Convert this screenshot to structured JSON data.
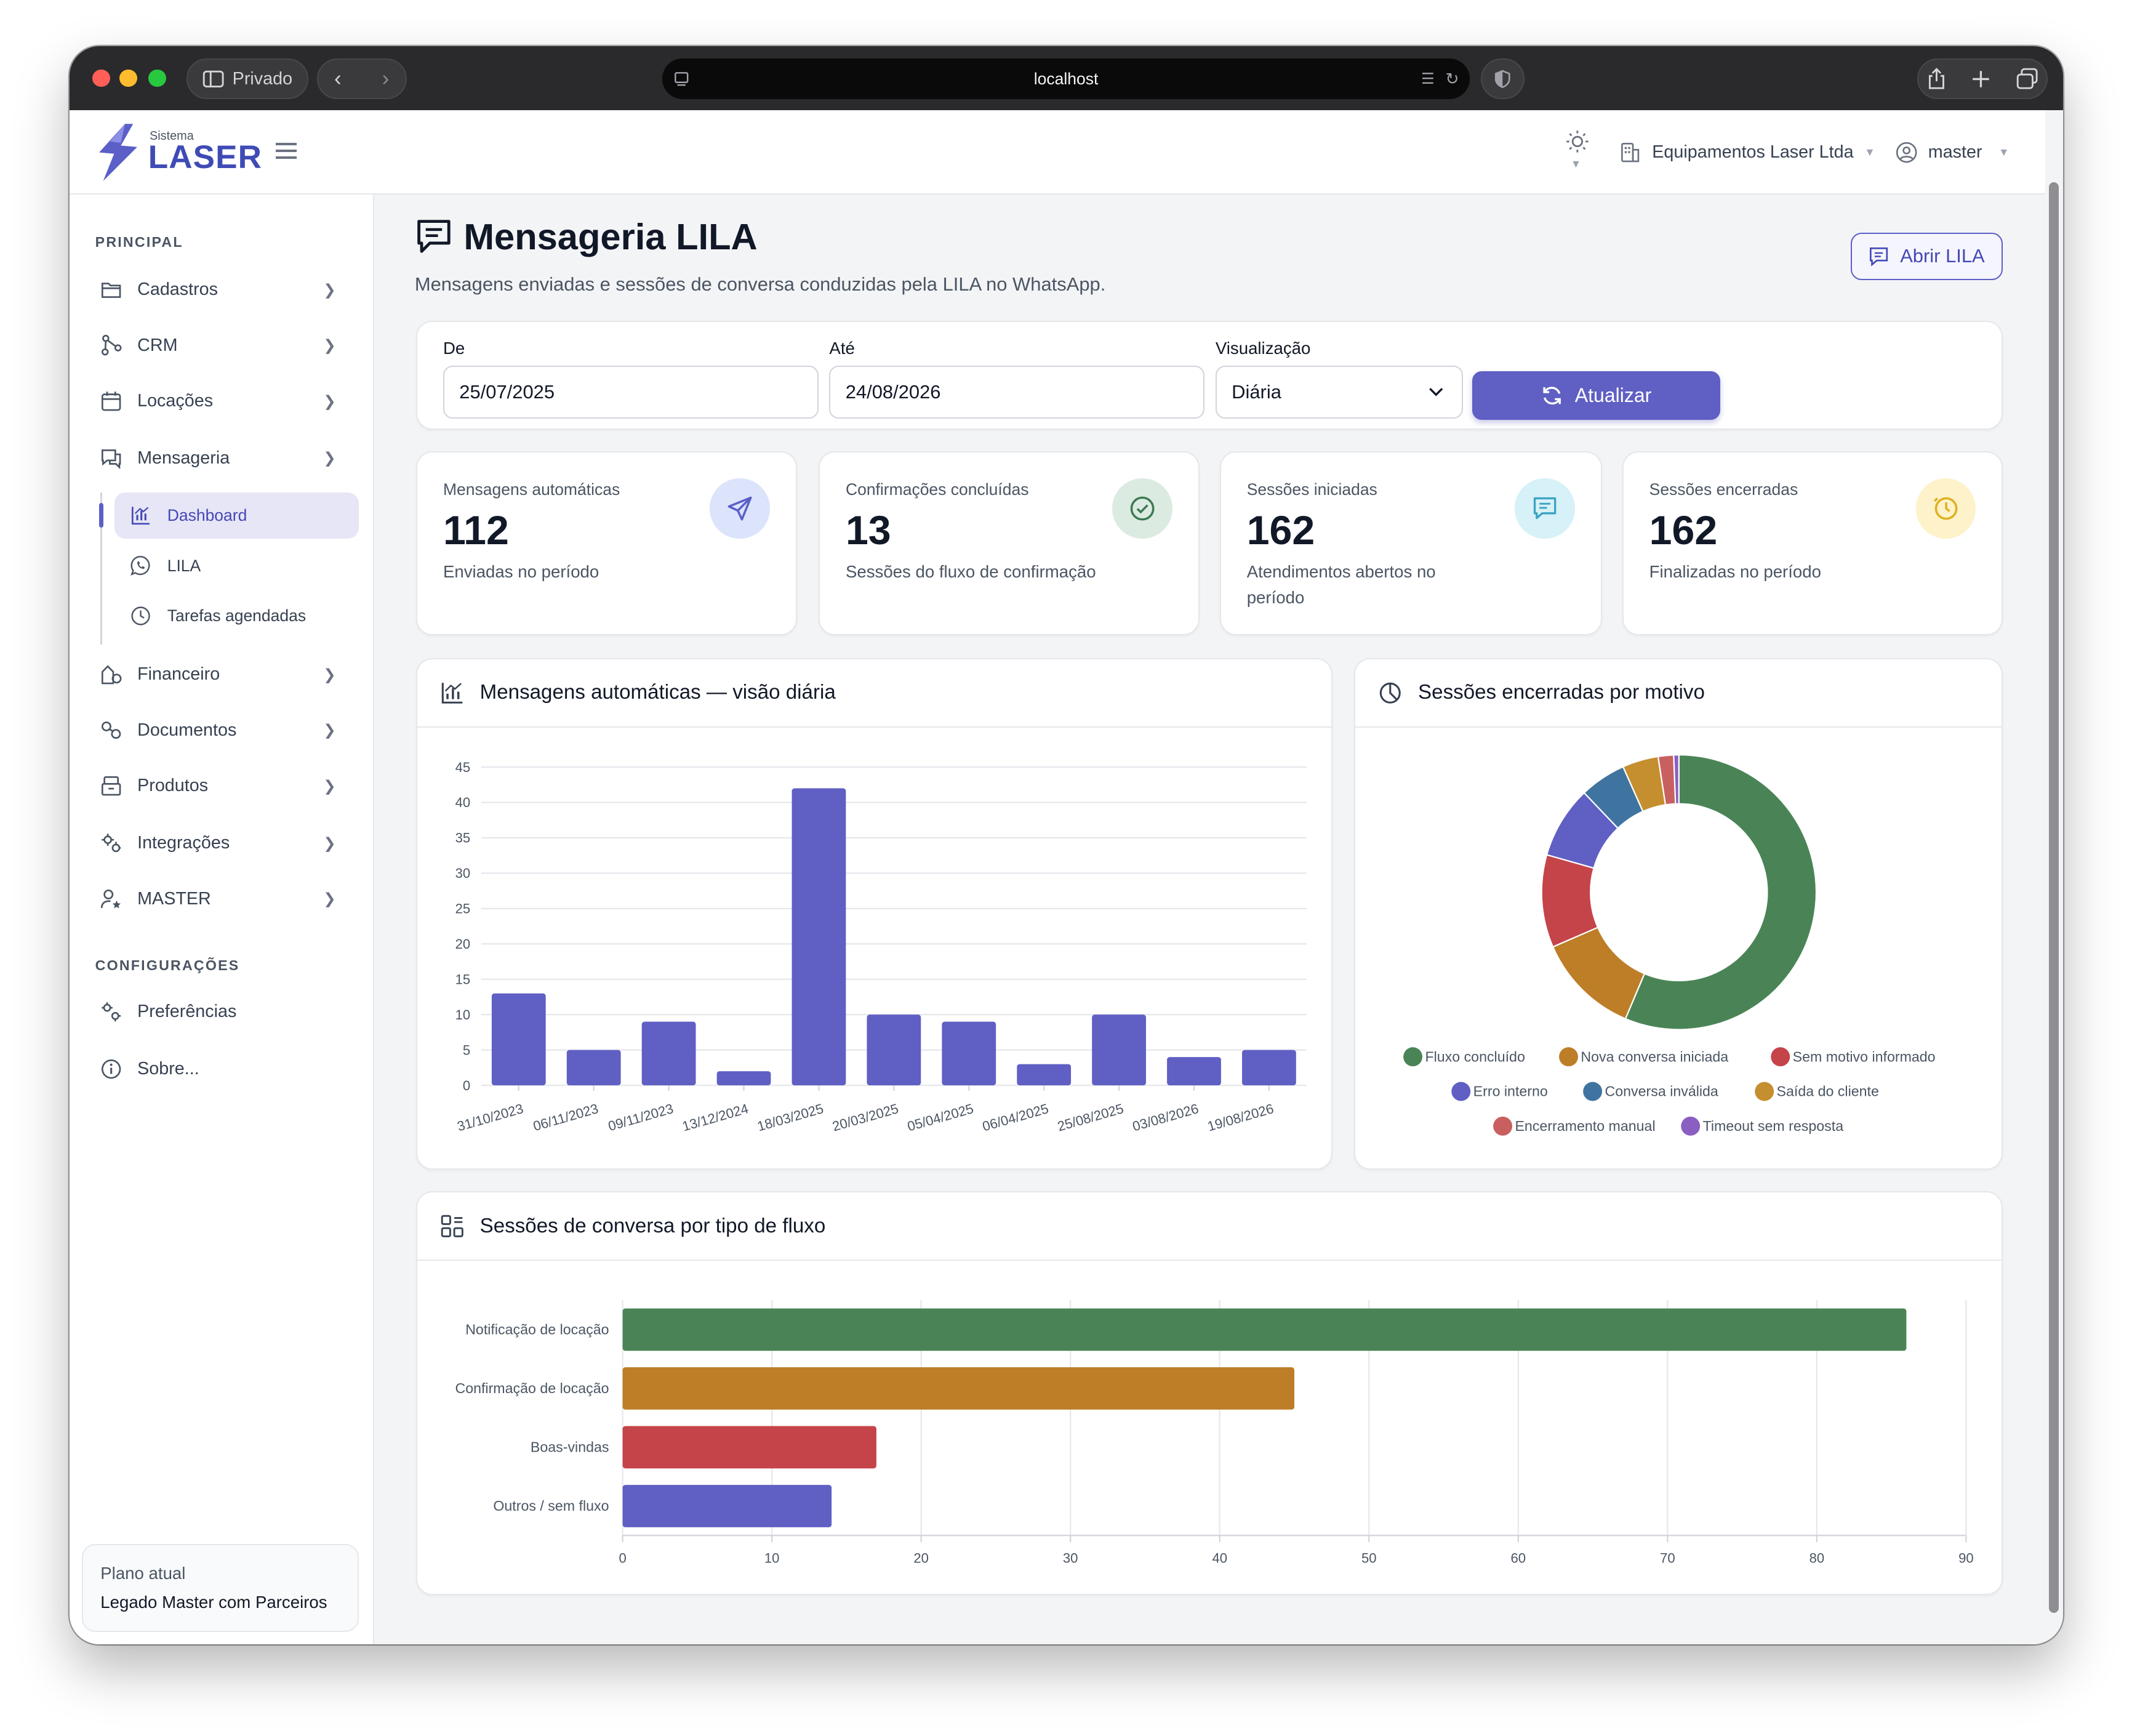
{
  "browser": {
    "private_label": "Privado",
    "url": "localhost"
  },
  "header": {
    "logo_small": "Sistema",
    "logo_big": "LASER",
    "company": "Equipamentos Laser Ltda",
    "user": "master"
  },
  "sidebar": {
    "section_principal": "PRINCIPAL",
    "section_config": "CONFIGURAÇÕES",
    "items": [
      {
        "label": "Cadastros",
        "icon": "folder-icon"
      },
      {
        "label": "CRM",
        "icon": "network-icon"
      },
      {
        "label": "Locações",
        "icon": "calendar-icon"
      },
      {
        "label": "Mensageria",
        "icon": "chat-icon"
      },
      {
        "label": "Financeiro",
        "icon": "finance-icon"
      },
      {
        "label": "Documentos",
        "icon": "documents-icon"
      },
      {
        "label": "Produtos",
        "icon": "package-icon"
      },
      {
        "label": "Integrações",
        "icon": "gears-icon"
      },
      {
        "label": "MASTER",
        "icon": "user-star-icon"
      }
    ],
    "subitems": [
      {
        "label": "Dashboard",
        "icon": "chart-icon",
        "active": true
      },
      {
        "label": "LILA",
        "icon": "whatsapp-icon"
      },
      {
        "label": "Tarefas agendadas",
        "icon": "clock-icon"
      }
    ],
    "config_items": [
      {
        "label": "Preferências",
        "icon": "settings-icon"
      },
      {
        "label": "Sobre...",
        "icon": "info-icon"
      }
    ],
    "plan_label": "Plano atual",
    "plan_value": "Legado Master com Parceiros"
  },
  "page": {
    "title": "Mensageria LILA",
    "subtitle": "Mensagens enviadas e sessões de conversa conduzidas pela LILA no WhatsApp.",
    "open_button": "Abrir LILA"
  },
  "filters": {
    "from_label": "De",
    "from_value": "25/07/2025",
    "to_label": "Até",
    "to_value": "24/08/2026",
    "view_label": "Visualização",
    "view_value": "Diária",
    "update_button": "Atualizar"
  },
  "kpis": [
    {
      "label": "Mensagens automáticas",
      "value": "112",
      "sub": "Enviadas no período",
      "icon": "send-icon",
      "bg": "#dbe4fb",
      "fg": "#5b5fc7"
    },
    {
      "label": "Confirmações concluídas",
      "value": "13",
      "sub": "Sessões do fluxo de confirmação",
      "icon": "check-circle-icon",
      "bg": "#dcebe1",
      "fg": "#3d7a53"
    },
    {
      "label": "Sessões iniciadas",
      "value": "162",
      "sub": "Atendimentos abertos no período",
      "icon": "message-icon",
      "bg": "#d6f1f7",
      "fg": "#3aa3c2"
    },
    {
      "label": "Sessões encerradas",
      "value": "162",
      "sub": "Finalizadas no período",
      "icon": "clock-alert-icon",
      "bg": "#fdf2c9",
      "fg": "#e0b020"
    }
  ],
  "colors": {
    "accent": "#5f5fc4",
    "green": "#4a8456",
    "orange": "#bd7e27",
    "red": "#c5444a"
  },
  "chart_data": [
    {
      "type": "bar",
      "title": "Mensagens automáticas — visão diária",
      "categories": [
        "31/10/2023",
        "06/11/2023",
        "09/11/2023",
        "13/12/2024",
        "18/03/2025",
        "20/03/2025",
        "05/04/2025",
        "06/04/2025",
        "25/08/2025",
        "03/08/2026",
        "19/08/2026"
      ],
      "values": [
        13,
        5,
        9,
        2,
        42,
        10,
        9,
        3,
        10,
        4,
        5
      ],
      "ylim": [
        0,
        45
      ],
      "yticks": [
        0,
        5,
        10,
        15,
        20,
        25,
        30,
        35,
        40,
        45
      ],
      "color": "#5f5fc4",
      "grid": true
    },
    {
      "type": "pie",
      "title": "Sessões encerradas por motivo",
      "labels": [
        "Fluxo concluído",
        "Nova conversa iniciada",
        "Sem motivo informado",
        "Erro interno",
        "Conversa inválida",
        "Saída do cliente",
        "Encerramento manual",
        "Timeout sem resposta"
      ],
      "values": [
        93,
        20,
        18,
        14,
        9,
        7,
        3,
        1
      ],
      "colors": [
        "#4a8456",
        "#bd7e27",
        "#c5444a",
        "#5f5fc4",
        "#3f74a0",
        "#c58f2f",
        "#c86060",
        "#8b5fc1"
      ],
      "legend": "bottom"
    },
    {
      "type": "bar",
      "orientation": "horizontal",
      "title": "Sessões de conversa por tipo de fluxo",
      "categories": [
        "Notificação de locação",
        "Confirmação de locação",
        "Boas-vindas",
        "Outros / sem fluxo"
      ],
      "values": [
        86,
        45,
        17,
        14
      ],
      "colors": [
        "#4a8456",
        "#bd7e27",
        "#c5444a",
        "#5f5fc4"
      ],
      "xlim": [
        0,
        90
      ],
      "xticks": [
        0,
        10,
        20,
        30,
        40,
        50,
        60,
        70,
        80,
        90
      ],
      "grid": true
    }
  ]
}
